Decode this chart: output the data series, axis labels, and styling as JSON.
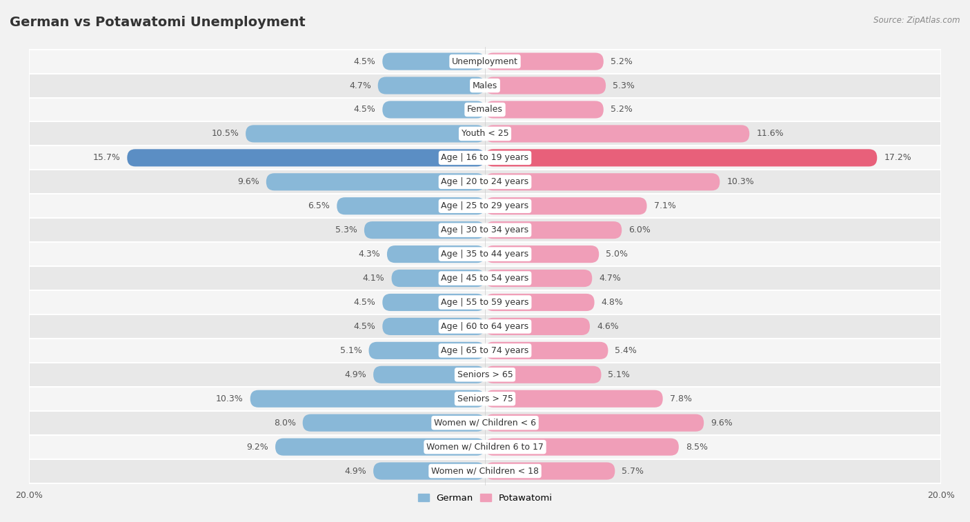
{
  "title": "German vs Potawatomi Unemployment",
  "source": "Source: ZipAtlas.com",
  "categories": [
    "Unemployment",
    "Males",
    "Females",
    "Youth < 25",
    "Age | 16 to 19 years",
    "Age | 20 to 24 years",
    "Age | 25 to 29 years",
    "Age | 30 to 34 years",
    "Age | 35 to 44 years",
    "Age | 45 to 54 years",
    "Age | 55 to 59 years",
    "Age | 60 to 64 years",
    "Age | 65 to 74 years",
    "Seniors > 65",
    "Seniors > 75",
    "Women w/ Children < 6",
    "Women w/ Children 6 to 17",
    "Women w/ Children < 18"
  ],
  "german": [
    4.5,
    4.7,
    4.5,
    10.5,
    15.7,
    9.6,
    6.5,
    5.3,
    4.3,
    4.1,
    4.5,
    4.5,
    5.1,
    4.9,
    10.3,
    8.0,
    9.2,
    4.9
  ],
  "potawatomi": [
    5.2,
    5.3,
    5.2,
    11.6,
    17.2,
    10.3,
    7.1,
    6.0,
    5.0,
    4.7,
    4.8,
    4.6,
    5.4,
    5.1,
    7.8,
    9.6,
    8.5,
    5.7
  ],
  "german_color": "#89b8d8",
  "potawatomi_color": "#f09eb8",
  "german_highlight_color": "#5b8ec4",
  "potawatomi_highlight_color": "#e8607a",
  "axis_limit": 20.0,
  "bg_color": "#f2f2f2",
  "row_bg_even": "#f5f5f5",
  "row_bg_odd": "#e8e8e8",
  "row_sep_color": "#ffffff",
  "label_fontsize": 9,
  "value_fontsize": 9,
  "title_fontsize": 14,
  "legend_german": "German",
  "legend_potawatomi": "Potawatomi",
  "highlight_indices": [
    3,
    4,
    14
  ]
}
